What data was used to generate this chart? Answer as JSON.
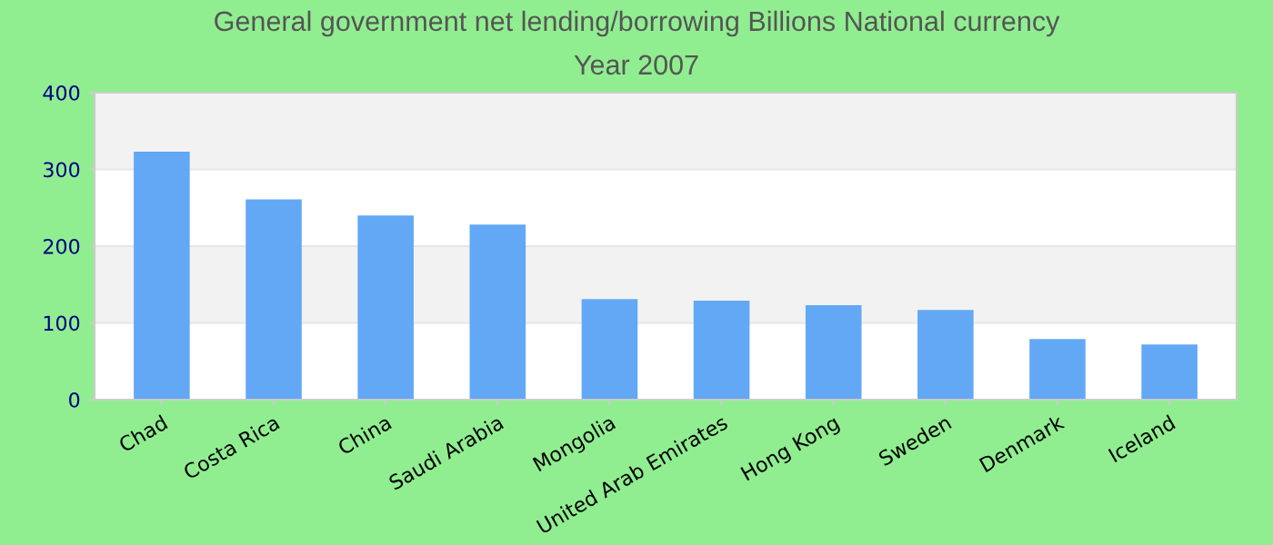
{
  "chart_data": {
    "type": "bar",
    "title": "General government net lending/borrowing Billions National currency",
    "subtitle": "Year 2007",
    "categories": [
      "Chad",
      "Costa Rica",
      "China",
      "Saudi Arabia",
      "Mongolia",
      "United Arab Emirates",
      "Hong Kong",
      "Sweden",
      "Denmark",
      "Iceland"
    ],
    "values": [
      323,
      261,
      240,
      228,
      131,
      129,
      123,
      117,
      79,
      72
    ],
    "color": "#62a8f5",
    "ylim": [
      0,
      400
    ],
    "yticks": [
      0,
      100,
      200,
      300,
      400
    ],
    "grid": "y"
  }
}
